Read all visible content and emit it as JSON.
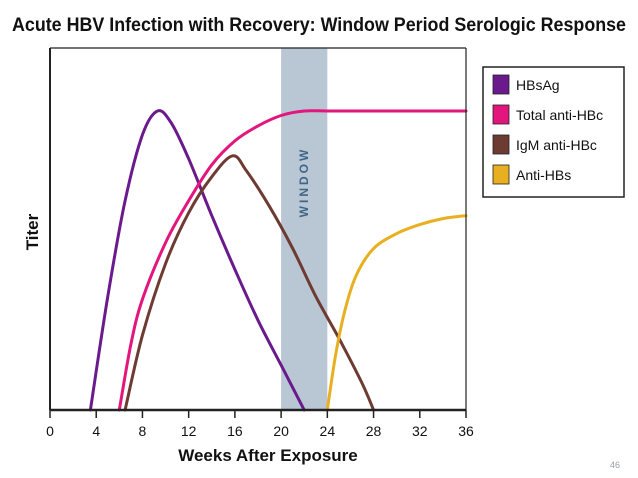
{
  "slide": {
    "page_number": "46"
  },
  "chart_data": {
    "type": "line",
    "title": "Acute HBV Infection with Recovery: Window Period Serologic Response",
    "xlabel": "Weeks After Exposure",
    "ylabel": "Titer",
    "xlim": [
      0,
      36
    ],
    "ylim": [
      0,
      100
    ],
    "x_ticks": [
      "0",
      "4",
      "8",
      "12",
      "16",
      "20",
      "24",
      "28",
      "32",
      "36"
    ],
    "grid": false,
    "legend_position": "top-right",
    "window": {
      "label": "WINDOW",
      "x_start": 20,
      "x_end": 24,
      "color": "#b8c7d3"
    },
    "series": [
      {
        "name": "HBsAg",
        "color": "#6a1a8c",
        "points": [
          [
            3.5,
            0
          ],
          [
            5,
            38
          ],
          [
            6.5,
            70
          ],
          [
            8,
            92
          ],
          [
            9.3,
            100
          ],
          [
            10.5,
            96
          ],
          [
            12,
            84
          ],
          [
            14,
            65
          ],
          [
            16,
            47
          ],
          [
            18,
            30
          ],
          [
            20,
            15
          ],
          [
            22,
            0
          ]
        ]
      },
      {
        "name": "Total anti-HBc",
        "color": "#e2167d",
        "points": [
          [
            6,
            0
          ],
          [
            7,
            22
          ],
          [
            8,
            37
          ],
          [
            10,
            56
          ],
          [
            12,
            70
          ],
          [
            14,
            82
          ],
          [
            16,
            90
          ],
          [
            18,
            95
          ],
          [
            20,
            98.5
          ],
          [
            22,
            100
          ],
          [
            24,
            100
          ],
          [
            28,
            100
          ],
          [
            32,
            100
          ],
          [
            36,
            100
          ]
        ]
      },
      {
        "name": "IgM anti-HBc",
        "color": "#6e3b33",
        "points": [
          [
            6.5,
            0
          ],
          [
            8,
            25
          ],
          [
            10,
            49
          ],
          [
            12,
            66
          ],
          [
            14,
            78
          ],
          [
            15.8,
            85
          ],
          [
            17,
            80
          ],
          [
            19,
            68
          ],
          [
            21,
            54
          ],
          [
            23,
            38
          ],
          [
            25,
            24
          ],
          [
            27,
            9
          ],
          [
            28,
            0
          ]
        ]
      },
      {
        "name": "Anti-HBs",
        "color": "#e8b020",
        "points": [
          [
            24,
            0
          ],
          [
            24.7,
            18
          ],
          [
            25.5,
            33
          ],
          [
            26.5,
            45
          ],
          [
            28,
            54
          ],
          [
            30,
            59
          ],
          [
            32,
            62
          ],
          [
            34,
            64
          ],
          [
            36,
            65
          ]
        ]
      }
    ]
  }
}
